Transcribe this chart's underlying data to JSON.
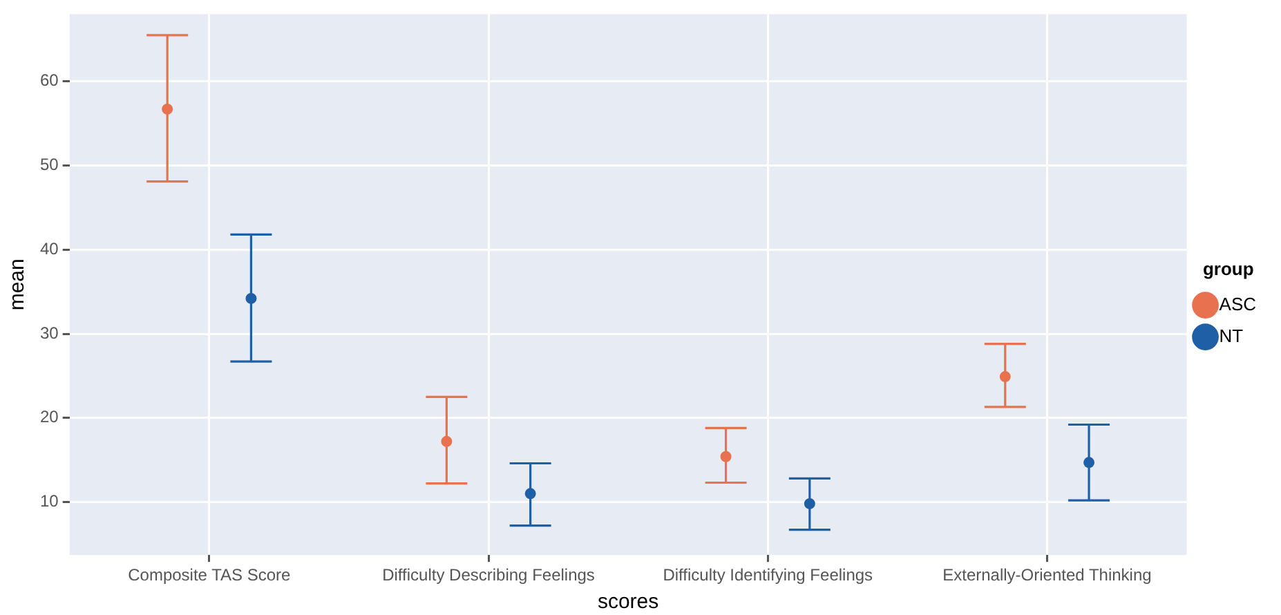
{
  "chart_data": {
    "type": "scatter",
    "xlabel": "scores",
    "ylabel": "mean",
    "legend_title": "group",
    "legend": "right",
    "grid": true,
    "marker": "circle",
    "categories": [
      "Composite TAS Score",
      "Difficulty Describing Feelings",
      "Difficulty Identifying Feelings",
      "Externally-Oriented Thinking"
    ],
    "ylim": [
      3.7,
      68
    ],
    "yticks": [
      10,
      20,
      30,
      40,
      50,
      60
    ],
    "series": [
      {
        "name": "ASC",
        "color": "#e8714f",
        "values": [
          56.7,
          17.2,
          15.4,
          24.9
        ],
        "errors": [
          [
            48.1,
            65.5
          ],
          [
            12.2,
            22.5
          ],
          [
            12.3,
            18.8
          ],
          [
            21.3,
            28.8
          ]
        ]
      },
      {
        "name": "NT",
        "color": "#1f5fa6",
        "values": [
          34.2,
          11.0,
          9.8,
          14.7
        ],
        "errors": [
          [
            26.7,
            41.8
          ],
          [
            7.2,
            14.6
          ],
          [
            6.7,
            12.8
          ],
          [
            10.2,
            19.2
          ]
        ]
      }
    ]
  }
}
